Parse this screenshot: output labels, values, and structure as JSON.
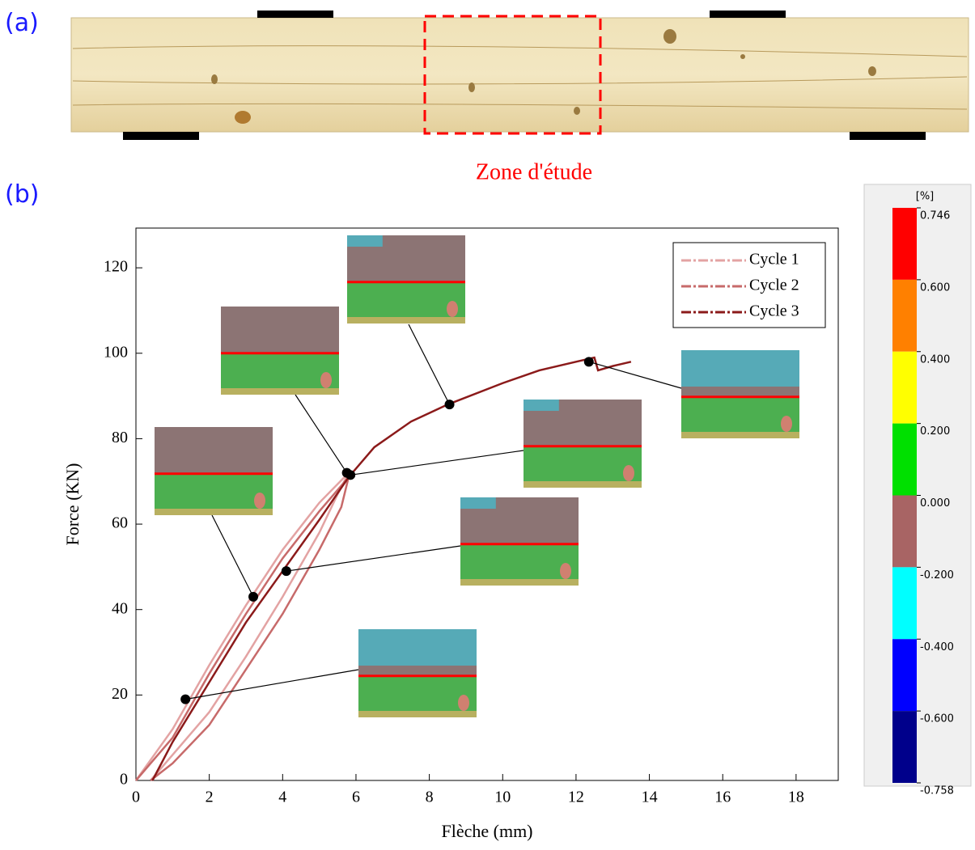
{
  "panel_labels": [
    "(a)",
    "(b)"
  ],
  "annotation": "Zone d'étude",
  "chart_data": {
    "type": "line",
    "xlabel": "Flèche (mm)",
    "ylabel": "Force (KN)",
    "xlim": [
      0,
      19.15
    ],
    "ylim": [
      0,
      129.3
    ],
    "xticks": [
      0,
      2,
      4,
      6,
      8,
      10,
      12,
      14,
      16,
      18
    ],
    "yticks": [
      0,
      20,
      40,
      60,
      80,
      100,
      120
    ],
    "legend": "upper right",
    "series": [
      {
        "name": "Cycle 1",
        "color": "#e3a3a3",
        "x": [
          0,
          0.5,
          1,
          2,
          3,
          4,
          5,
          5.8,
          5.5,
          5,
          4,
          3,
          2,
          1,
          0.4
        ],
        "values": [
          0,
          6,
          12,
          27,
          41,
          54,
          65,
          72,
          67,
          58,
          43,
          29,
          16,
          6,
          0
        ]
      },
      {
        "name": "Cycle 2",
        "color": "#c76a6a",
        "x": [
          0,
          0.5,
          1,
          2,
          3,
          4,
          5,
          5.8,
          5.6,
          5,
          4,
          3,
          2,
          1,
          0.4
        ],
        "values": [
          0,
          5,
          10,
          25,
          39,
          52,
          63,
          71,
          64,
          54,
          39,
          26,
          13,
          4,
          0
        ]
      },
      {
        "name": "Cycle 3",
        "color": "#8b1a1a",
        "x": [
          0.45,
          1,
          2,
          3,
          4,
          5,
          5.8,
          6.5,
          7.5,
          8.5,
          10,
          11,
          12,
          12.5,
          12.6,
          13,
          13.5
        ],
        "values": [
          0,
          9,
          23,
          37,
          49,
          61,
          71,
          78,
          84,
          88,
          93,
          96,
          98,
          99,
          96,
          97,
          98
        ]
      }
    ],
    "points": {
      "color": "#000000",
      "x": [
        1.35,
        3.2,
        4.1,
        5.75,
        5.85,
        8.55,
        12.35
      ],
      "values": [
        19,
        43,
        49,
        72,
        71.5,
        88,
        98
      ]
    }
  },
  "colorbar": {
    "label": "[%]",
    "colors": [
      "#ff0000",
      "#ff8000",
      "#ffff00",
      "#00e000",
      "#a86464",
      "#00ffff",
      "#0000ff",
      "#00008b"
    ],
    "ticks": [
      {
        "value": 0.746,
        "label": "0.746"
      },
      {
        "value": 0.6,
        "label": "0.600"
      },
      {
        "value": 0.4,
        "label": "0.400"
      },
      {
        "value": 0.2,
        "label": "0.200"
      },
      {
        "value": 0,
        "label": "0.000"
      },
      {
        "value": -0.2,
        "label": "-0.200"
      },
      {
        "value": -0.4,
        "label": "-0.400"
      },
      {
        "value": -0.6,
        "label": "-0.600"
      },
      {
        "value": -0.758,
        "label": "-0.758"
      }
    ]
  }
}
